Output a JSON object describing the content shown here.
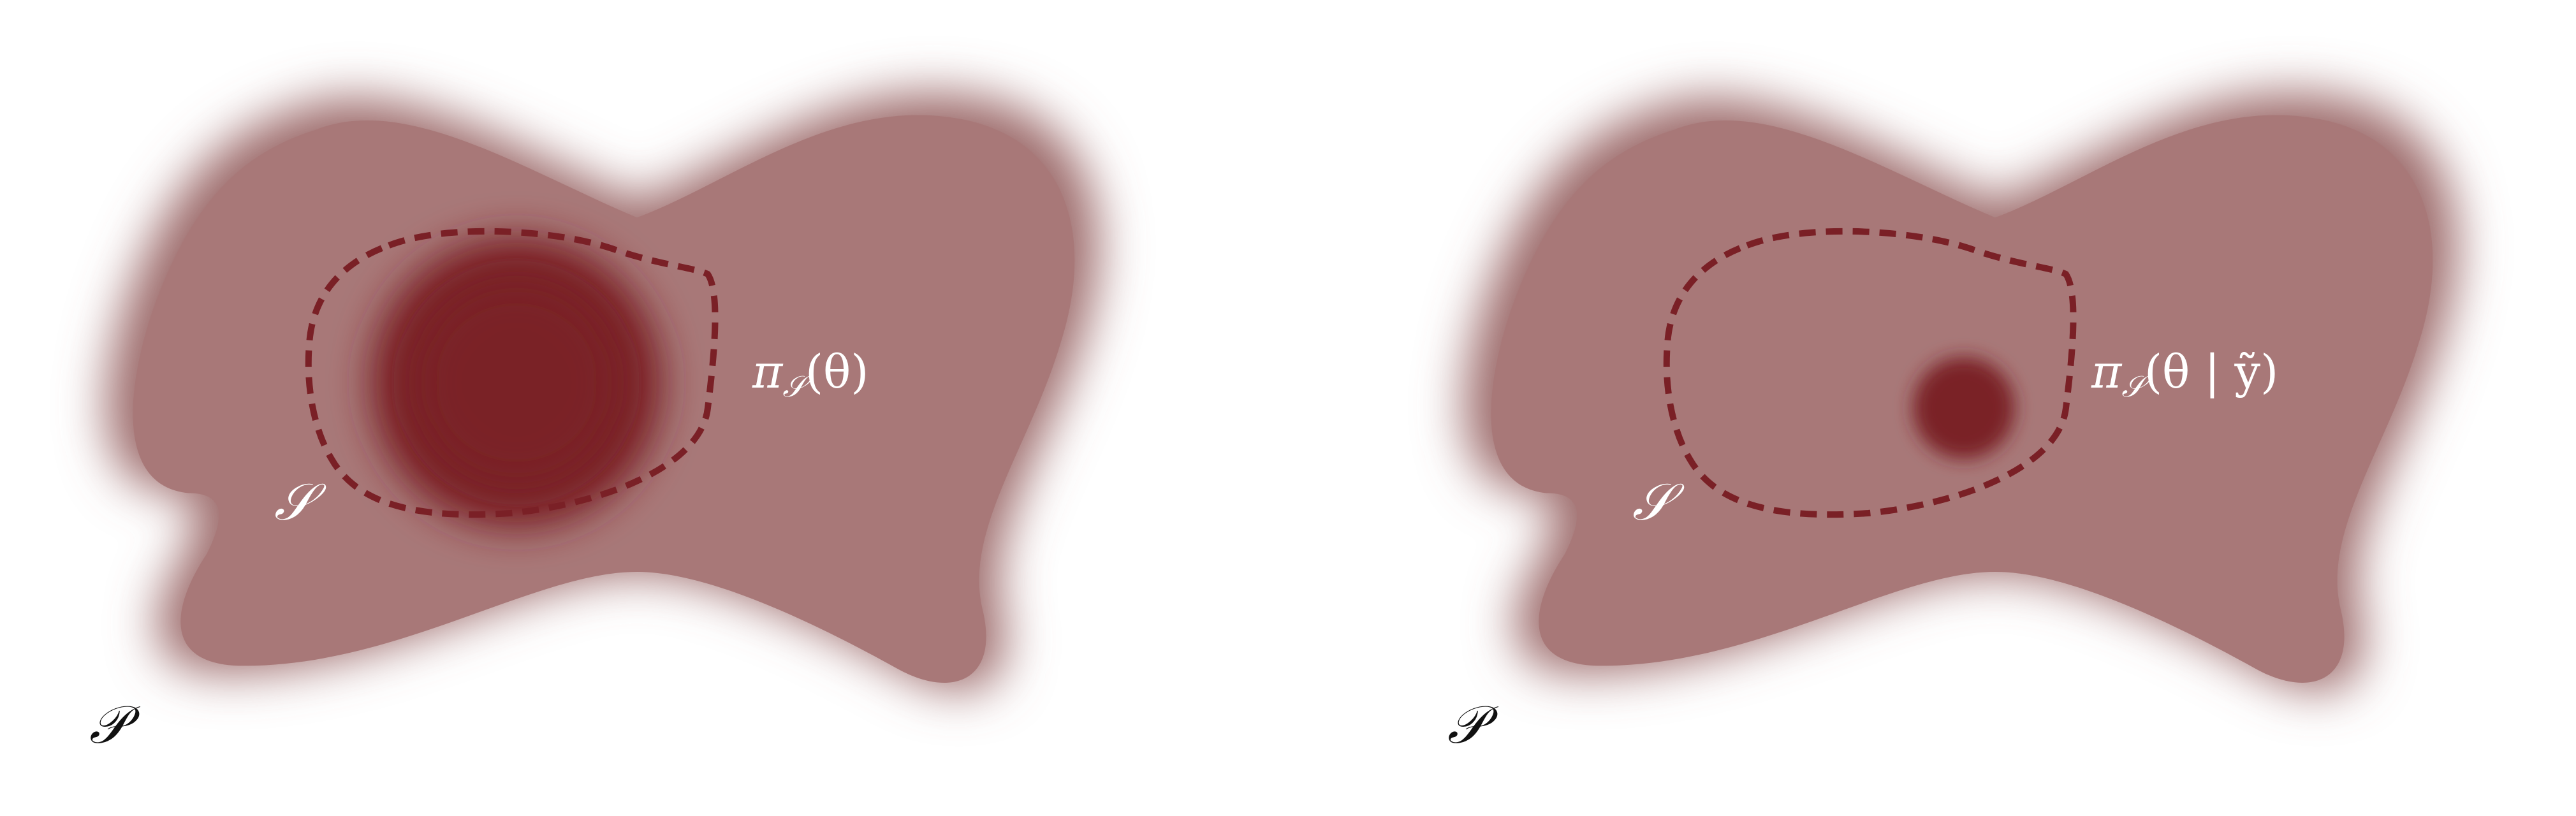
{
  "panels": [
    {
      "id": "prior",
      "labels": {
        "outer_space": "𝒫",
        "subset": "𝒮",
        "density_name": "π",
        "density_subscript": "𝒮",
        "density_args": "(θ)"
      }
    },
    {
      "id": "posterior",
      "labels": {
        "outer_space": "𝒫",
        "subset": "𝒮",
        "density_name": "π",
        "density_subscript": "𝒮",
        "density_args": "(θ | ỹ)"
      }
    }
  ],
  "colors": {
    "outer_fill": "#a87878",
    "outer_edge": "#9c6a6a",
    "density_core": "#7a2026",
    "dashed_outline": "#7a2026",
    "label_light": "#ffffff",
    "label_dark": "#111111"
  }
}
